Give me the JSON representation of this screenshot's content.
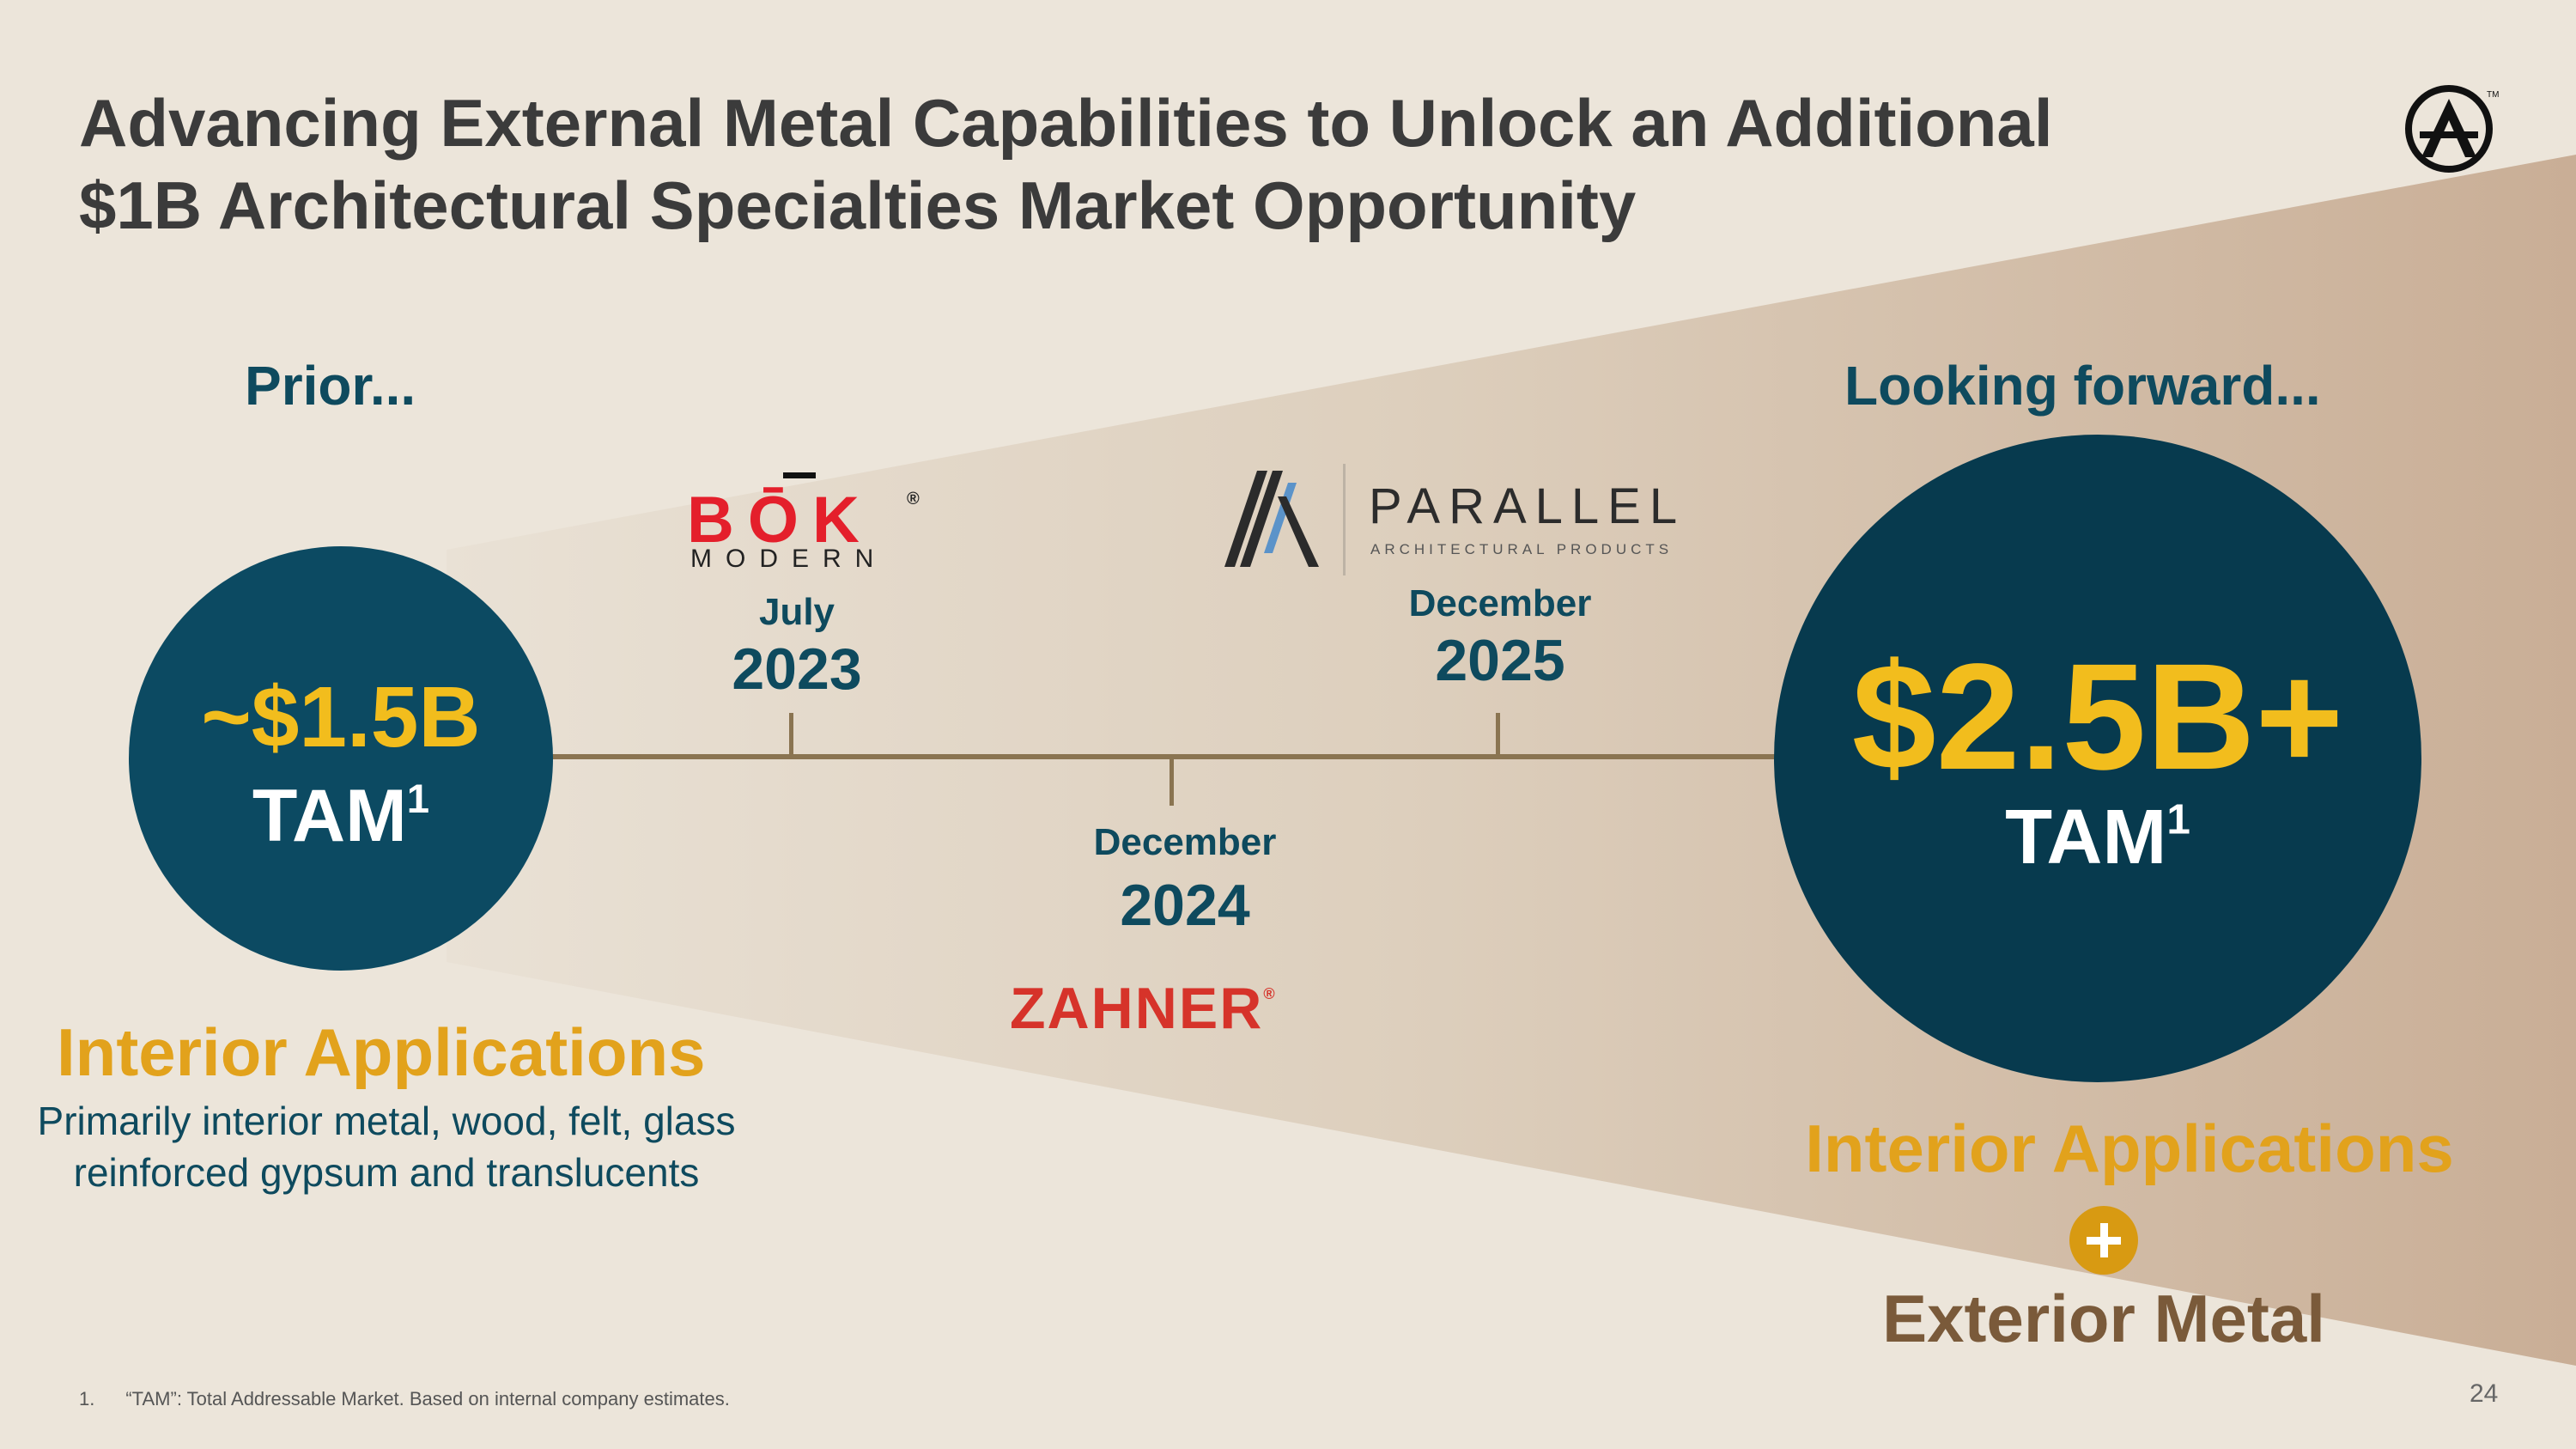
{
  "slide": {
    "title_line1": "Advancing External Metal Capabilities to Unlock an Additional",
    "title_line2": "$1B Architectural Specialties Market Opportunity",
    "page_number": "24"
  },
  "prior": {
    "label": "Prior...",
    "tam_value": "~$1.5B",
    "tam_label": "TAM",
    "tam_footnote": "1",
    "applications_title": "Interior Applications",
    "applications_desc_line1": "Primarily interior metal, wood, felt, glass",
    "applications_desc_line2": "reinforced gypsum and translucents"
  },
  "forward": {
    "label": "Looking forward...",
    "tam_value": "$2.5B+",
    "tam_label": "TAM",
    "tam_footnote": "1",
    "applications_title": "Interior Applications",
    "plus": "+",
    "exterior_title": "Exterior Metal"
  },
  "acquisitions": [
    {
      "month": "July",
      "year": "2023",
      "logo_name": "BŌK",
      "logo_sub": "MODERN",
      "logo_reg": "®"
    },
    {
      "month": "December",
      "year": "2024",
      "logo_name": "ZAHNER",
      "logo_reg": "®"
    },
    {
      "month": "December",
      "year": "2025",
      "logo_name": "PARALLEL",
      "logo_sub": "ARCHITECTURAL PRODUCTS"
    }
  ],
  "footnote": {
    "number": "1.",
    "text": "“TAM”: Total Addressable Market. Based on internal company estimates."
  },
  "colors": {
    "background": "#ece5da",
    "navy": "#0c4a62",
    "dark_navy": "#073a4e",
    "gold": "#f2bd1d",
    "orange": "#e2a21c",
    "brown": "#7a5a3a",
    "timeline": "#8a7451",
    "bok_red": "#e41f2b",
    "zahner_red": "#d6332a"
  },
  "icons": {
    "brand": "circled-a-logo",
    "parallel": "parallel-stripes-logo",
    "plus": "plus-icon"
  }
}
